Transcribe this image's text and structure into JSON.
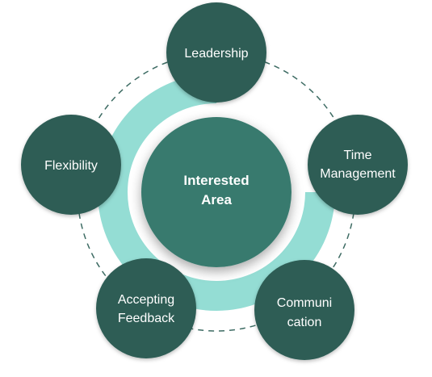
{
  "colors": {
    "node_fill": "#2d5d55",
    "center_fill": "#387a6e",
    "ring_fill": "#94ddd4",
    "dashed_ring": "#3d6b63",
    "text": "#ffffff"
  },
  "center": {
    "line1": "Interested",
    "line2": "Area"
  },
  "nodes": {
    "leadership": {
      "line1": "Leadership"
    },
    "time_management": {
      "line1": "Time",
      "line2": "Management"
    },
    "communication": {
      "line1": "Communi",
      "line2": "cation"
    },
    "accepting_feedback": {
      "line1": "Accepting",
      "line2": "Feedback"
    },
    "flexibility": {
      "line1": "Flexibility"
    }
  }
}
